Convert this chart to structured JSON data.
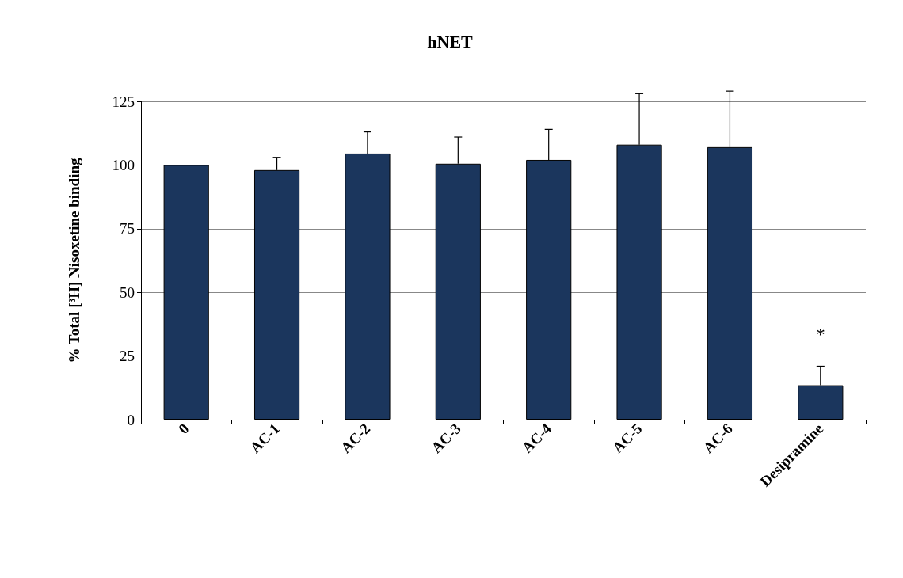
{
  "chart_data": {
    "type": "bar",
    "title": "hNET",
    "ylabel": "% Total [³H] Nisoxetine binding",
    "categories": [
      "0",
      "AC-1",
      "AC-2",
      "AC-3",
      "AC-4",
      "AC-5",
      "AC-6",
      "Desipramine"
    ],
    "values": [
      100,
      98,
      104.5,
      100.5,
      102,
      108,
      107,
      13.5
    ],
    "errors": [
      null,
      [
        98,
        103
      ],
      [
        104.5,
        113
      ],
      [
        100.5,
        111
      ],
      [
        102,
        114
      ],
      [
        108,
        128
      ],
      [
        107,
        129
      ],
      [
        13.5,
        21
      ]
    ],
    "color": "#1b365d",
    "ylim": [
      0,
      125
    ],
    "yticks": [
      0,
      25,
      50,
      75,
      100,
      125
    ],
    "grid": "y",
    "annotations": [
      "*"
    ]
  }
}
